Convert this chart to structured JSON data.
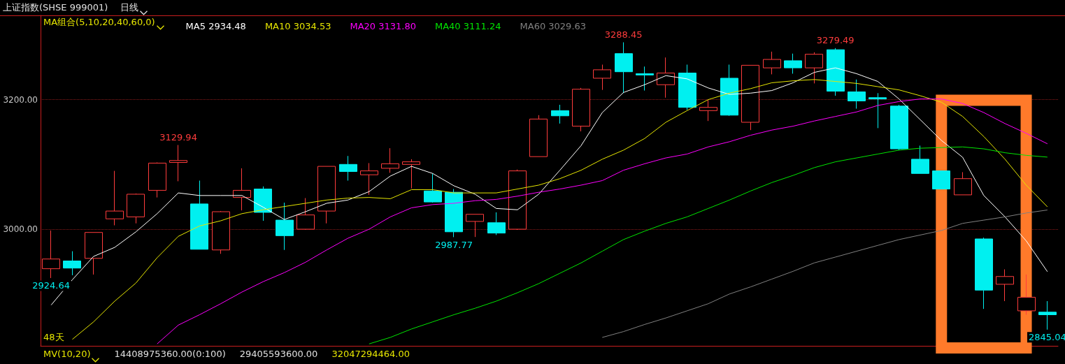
{
  "chart_data": {
    "type": "candlestick",
    "title": "上证指数(SHSE 999001)",
    "subtitle": "日线",
    "legend_title": "MA组合(5,10,20,40,60,0)",
    "legend": "top left",
    "grid": "y",
    "tick_labels": "y",
    "categories": [
      null,
      null,
      null,
      null,
      null,
      null,
      null,
      null,
      null,
      null,
      null,
      null,
      null,
      null,
      null,
      null,
      null,
      null,
      null,
      null,
      null,
      null,
      null,
      null,
      null,
      null,
      null,
      null,
      null,
      null,
      null,
      null,
      null,
      null,
      null,
      null,
      null,
      null,
      null,
      null,
      null,
      null,
      null,
      null,
      null,
      null,
      null,
      null
    ],
    "ylim": [
      2820,
      3330
    ],
    "yticks": [
      {
        "value": 3000,
        "label": "3000.00"
      },
      {
        "value": 3200,
        "label": "3200.00"
      }
    ],
    "ohlc": [
      [
        2939,
        2998,
        2924.64,
        2954
      ],
      [
        2951,
        2966,
        2929,
        2940
      ],
      [
        2955,
        2995,
        2930,
        2995
      ],
      [
        3016,
        3090,
        3006,
        3028
      ],
      [
        3019,
        3055,
        3009,
        3054
      ],
      [
        3060,
        3103,
        3049,
        3102
      ],
      [
        3103,
        3129.94,
        3074,
        3106
      ],
      [
        3039,
        3075,
        2969,
        2969
      ],
      [
        2968,
        3028,
        2962,
        3027
      ],
      [
        3049,
        3094,
        3029,
        3060
      ],
      [
        3062,
        3066,
        3013,
        3026
      ],
      [
        3014,
        3041,
        2968,
        2990
      ],
      [
        3000,
        3048,
        2999,
        3022
      ],
      [
        3028,
        3097,
        3009,
        3097
      ],
      [
        3100,
        3113,
        3075,
        3089
      ],
      [
        3084,
        3102,
        3053,
        3090
      ],
      [
        3094,
        3125,
        3087,
        3101
      ],
      [
        3100,
        3108,
        3063,
        3104
      ],
      [
        3059,
        3086,
        3041,
        3042
      ],
      [
        3057,
        3062,
        2987.77,
        2996
      ],
      [
        3012,
        3023,
        2988,
        3023
      ],
      [
        3010,
        3026,
        2991,
        2994
      ],
      [
        3000,
        3092,
        2999,
        3090
      ],
      [
        3112,
        3176,
        3112,
        3170
      ],
      [
        3183,
        3192,
        3163,
        3175
      ],
      [
        3159,
        3218,
        3151,
        3216
      ],
      [
        3233,
        3254,
        3215,
        3246
      ],
      [
        3271,
        3288.45,
        3210,
        3243
      ],
      [
        3240,
        3251,
        3214,
        3238
      ],
      [
        3223,
        3265,
        3203,
        3241
      ],
      [
        3241,
        3254,
        3184,
        3188
      ],
      [
        3183,
        3200,
        3167,
        3188
      ],
      [
        3233,
        3254,
        3175,
        3176
      ],
      [
        3165,
        3253,
        3153,
        3253
      ],
      [
        3249,
        3274,
        3239,
        3262
      ],
      [
        3260,
        3271,
        3240,
        3249
      ],
      [
        3249,
        3273,
        3225,
        3270
      ],
      [
        3277,
        3279.49,
        3206,
        3213
      ],
      [
        3212,
        3231,
        3186,
        3198
      ],
      [
        3203,
        3210,
        3156,
        3201
      ],
      [
        3190,
        3192,
        3122,
        3124
      ],
      [
        3108,
        3129,
        3086,
        3086
      ],
      [
        3090,
        3090,
        3062,
        3062
      ],
      [
        3053,
        3088,
        3053,
        3078
      ],
      [
        2985,
        2987,
        2877,
        2906
      ],
      [
        2915,
        2938,
        2889,
        2927
      ],
      [
        2874,
        2930,
        2868,
        2895
      ],
      [
        2872,
        2889,
        2845.04,
        2868
      ]
    ],
    "colors": [
      "#ff3c3c",
      "#00f0f0",
      "#ff3c3c",
      "#ff3c3c",
      "#ff3c3c",
      "#ff3c3c",
      "#ff3c3c",
      "#00f0f0",
      "#ff3c3c",
      "#ff3c3c",
      "#00f0f0",
      "#00f0f0",
      "#ff3c3c",
      "#ff3c3c",
      "#00f0f0",
      "#ff3c3c",
      "#ff3c3c",
      "#ff3c3c",
      "#00f0f0",
      "#00f0f0",
      "#ff3c3c",
      "#00f0f0",
      "#ff3c3c",
      "#ff3c3c",
      "#00f0f0",
      "#ff3c3c",
      "#ff3c3c",
      "#00f0f0",
      "#00f0f0",
      "#ff3c3c",
      "#00f0f0",
      "#ff3c3c",
      "#00f0f0",
      "#ff3c3c",
      "#ff3c3c",
      "#00f0f0",
      "#ff3c3c",
      "#00f0f0",
      "#00f0f0",
      "#00f0f0",
      "#00f0f0",
      "#00f0f0",
      "#00f0f0",
      "#ff3c3c",
      "#00f0f0",
      "#ff3c3c",
      "#ff3c3c",
      "#00f0f0"
    ],
    "series": [
      {
        "name": "MA5 2934.48",
        "type": "line",
        "color": "#ffffff",
        "values": [
          2883,
          2922,
          2958,
          2972,
          2996,
          3024,
          3056,
          3052,
          3052,
          3052,
          3034,
          3015,
          3027,
          3040,
          3045,
          3058,
          3082,
          3097,
          3086,
          3067,
          3054,
          3032,
          3030,
          3054,
          3091,
          3129,
          3180,
          3211,
          3223,
          3237,
          3232,
          3218,
          3208,
          3210,
          3214,
          3226,
          3242,
          3249,
          3240,
          3228,
          3201,
          3169,
          3137,
          3111,
          3052,
          3019,
          2982,
          2934.48
        ]
      },
      {
        "name": "MA10 3034.53",
        "type": "line",
        "color": "#e6e600",
        "values": [
          null,
          2830,
          2857,
          2889,
          2917,
          2956,
          2989,
          3005,
          3013,
          3024,
          3030,
          3035,
          3040,
          3045,
          3048,
          3049,
          3047,
          3061,
          3061,
          3056,
          3056,
          3056,
          3062,
          3068,
          3078,
          3091,
          3108,
          3122,
          3140,
          3165,
          3183,
          3200,
          3210,
          3217,
          3226,
          3229,
          3231,
          3228,
          3225,
          3220,
          3215,
          3206,
          3196,
          3174,
          3143,
          3108,
          3068,
          3034.53
        ]
      },
      {
        "name": "MA20 3131.80",
        "type": "line",
        "color": "#ff00ff",
        "values": [
          null,
          null,
          null,
          null,
          null,
          2823,
          2852,
          2868,
          2885,
          2903,
          2919,
          2933,
          2949,
          2968,
          2986,
          3000,
          3019,
          3033,
          3038,
          3040,
          3044,
          3046,
          3051,
          3057,
          3062,
          3068,
          3075,
          3091,
          3101,
          3110,
          3116,
          3127,
          3135,
          3145,
          3153,
          3159,
          3167,
          3174,
          3181,
          3191,
          3197,
          3201,
          3201,
          3194,
          3180,
          3163,
          3148,
          3131.8
        ]
      },
      {
        "name": "MA40 3111.24",
        "type": "line",
        "color": "#00e600",
        "values": [
          null,
          null,
          null,
          null,
          null,
          null,
          null,
          null,
          null,
          null,
          null,
          null,
          null,
          null,
          null,
          2823,
          2833,
          2846,
          2857,
          2868,
          2878,
          2889,
          2902,
          2916,
          2932,
          2948,
          2966,
          2984,
          2997,
          3009,
          3019,
          3032,
          3045,
          3059,
          3072,
          3083,
          3095,
          3104,
          3110,
          3116,
          3122,
          3125,
          3126,
          3127,
          3124,
          3118,
          3114,
          3111.24
        ]
      },
      {
        "name": "MA60 3029.63",
        "type": "line",
        "color": "#808080",
        "values": [
          null,
          null,
          null,
          null,
          null,
          null,
          null,
          null,
          null,
          null,
          null,
          null,
          null,
          null,
          null,
          null,
          null,
          null,
          null,
          null,
          null,
          null,
          null,
          null,
          null,
          null,
          2833,
          2842,
          2853,
          2863,
          2874,
          2885,
          2900,
          2911,
          2923,
          2935,
          2948,
          2957,
          2966,
          2975,
          2984,
          2991,
          2998,
          3009,
          3014,
          3019,
          3025,
          3029.63
        ]
      }
    ],
    "annotations": [
      {
        "text": "3129.94",
        "y": 3129.94
      },
      {
        "text": "3288.45",
        "y": 3288.45
      },
      {
        "text": "3279.49",
        "y": 3279.49
      },
      {
        "text": "2987.77",
        "y": 2987.77
      },
      {
        "text": "2924.64",
        "y": 2924.64
      },
      {
        "text": "2845.04",
        "y": 2845.04
      },
      "48天",
      "MV(10,20)",
      "14408975360.00(0:100)",
      "29405593600.00",
      "32047294464.00"
    ]
  }
}
